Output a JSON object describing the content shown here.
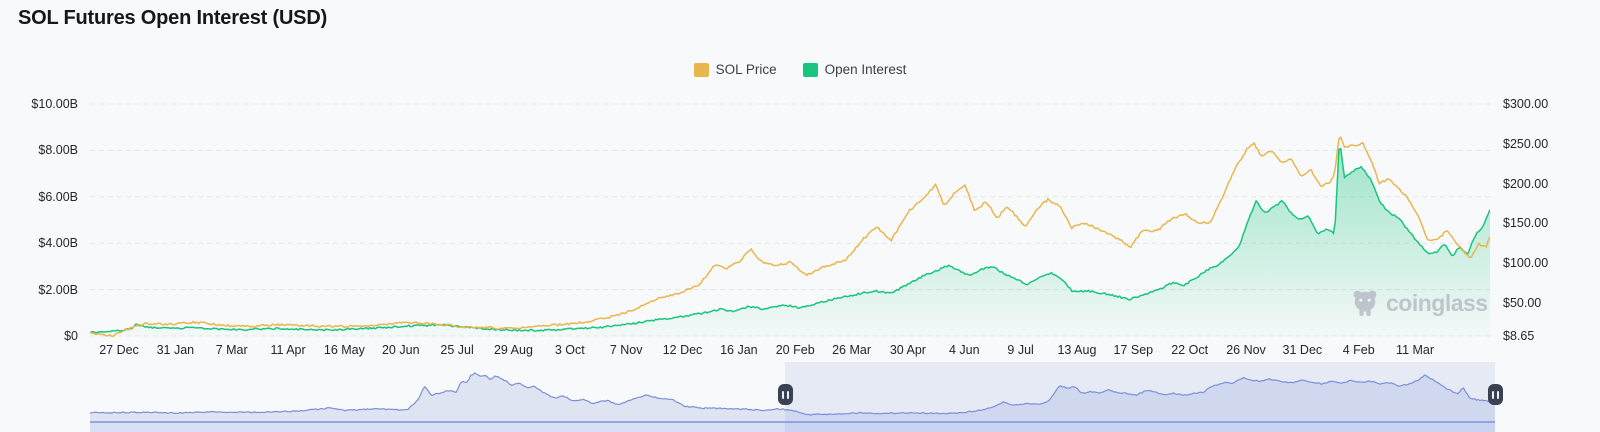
{
  "header": {
    "title": "SOL Futures Open Interest (USD)"
  },
  "legend": [
    {
      "label": "SOL Price",
      "color": "#e9b64d"
    },
    {
      "label": "Open Interest",
      "color": "#18c57e"
    }
  ],
  "watermark": {
    "label": "coinglass"
  },
  "chart_data": {
    "type": "line",
    "title": "SOL Futures Open Interest (USD)",
    "legend_position": "top-center",
    "grid": "horizontal-dashed",
    "left_axis": {
      "title": "Open Interest (USD)",
      "min": 0,
      "max": 10,
      "unit": "billion USD",
      "tick_labels": [
        "$10.00B",
        "$8.00B",
        "$6.00B",
        "$4.00B",
        "$2.00B",
        "$0"
      ]
    },
    "right_axis": {
      "title": "SOL Price (USD)",
      "min": 8.65,
      "max": 300,
      "unit": "USD",
      "tick_values": [
        300,
        250,
        200,
        150,
        100,
        50,
        8.65
      ],
      "tick_labels": [
        "$300.00",
        "$250.00",
        "$200.00",
        "$150.00",
        "$100.00",
        "$50.00",
        "$8.65"
      ]
    },
    "x_axis": {
      "tick_labels": [
        "27 Dec",
        "31 Jan",
        "7 Mar",
        "11 Apr",
        "16 May",
        "20 Jun",
        "25 Jul",
        "29 Aug",
        "3 Oct",
        "7 Nov",
        "12 Dec",
        "16 Jan",
        "20 Feb",
        "26 Mar",
        "30 Apr",
        "4 Jun",
        "9 Jul",
        "13 Aug",
        "17 Sep",
        "22 Oct",
        "26 Nov",
        "31 Dec",
        "4 Feb",
        "11 Mar"
      ]
    },
    "series": [
      {
        "name": "SOL Price",
        "axis": "right",
        "color": "#e9b64d",
        "style": "line",
        "points": [
          [
            0.0,
            13
          ],
          [
            0.006,
            11
          ],
          [
            0.016,
            8.65
          ],
          [
            0.02,
            12
          ],
          [
            0.025,
            16
          ],
          [
            0.039,
            24
          ],
          [
            0.055,
            23
          ],
          [
            0.075,
            26
          ],
          [
            0.095,
            22
          ],
          [
            0.115,
            21
          ],
          [
            0.135,
            23
          ],
          [
            0.155,
            21.5
          ],
          [
            0.175,
            20.5
          ],
          [
            0.195,
            21
          ],
          [
            0.215,
            23.5
          ],
          [
            0.228,
            26
          ],
          [
            0.245,
            24
          ],
          [
            0.265,
            20.5
          ],
          [
            0.285,
            19
          ],
          [
            0.3,
            18
          ],
          [
            0.315,
            20
          ],
          [
            0.33,
            22
          ],
          [
            0.345,
            24
          ],
          [
            0.36,
            28
          ],
          [
            0.375,
            34
          ],
          [
            0.39,
            43
          ],
          [
            0.405,
            56
          ],
          [
            0.42,
            62
          ],
          [
            0.435,
            73
          ],
          [
            0.447,
            99
          ],
          [
            0.455,
            93
          ],
          [
            0.465,
            104
          ],
          [
            0.472,
            118
          ],
          [
            0.48,
            101
          ],
          [
            0.49,
            97
          ],
          [
            0.5,
            101
          ],
          [
            0.512,
            85
          ],
          [
            0.525,
            96
          ],
          [
            0.54,
            104
          ],
          [
            0.552,
            130
          ],
          [
            0.562,
            146
          ],
          [
            0.572,
            128
          ],
          [
            0.585,
            166
          ],
          [
            0.597,
            184
          ],
          [
            0.604,
            199
          ],
          [
            0.61,
            172
          ],
          [
            0.618,
            189
          ],
          [
            0.625,
            198
          ],
          [
            0.632,
            165
          ],
          [
            0.64,
            178
          ],
          [
            0.648,
            156
          ],
          [
            0.655,
            172
          ],
          [
            0.662,
            158
          ],
          [
            0.668,
            146
          ],
          [
            0.676,
            168
          ],
          [
            0.684,
            180
          ],
          [
            0.693,
            172
          ],
          [
            0.701,
            144
          ],
          [
            0.71,
            151
          ],
          [
            0.719,
            144
          ],
          [
            0.728,
            137
          ],
          [
            0.737,
            128
          ],
          [
            0.743,
            120
          ],
          [
            0.752,
            142
          ],
          [
            0.762,
            140
          ],
          [
            0.772,
            155
          ],
          [
            0.782,
            162
          ],
          [
            0.792,
            150
          ],
          [
            0.8,
            151
          ],
          [
            0.808,
            180
          ],
          [
            0.817,
            216
          ],
          [
            0.826,
            242
          ],
          [
            0.831,
            252
          ],
          [
            0.837,
            234
          ],
          [
            0.844,
            242
          ],
          [
            0.851,
            226
          ],
          [
            0.858,
            232
          ],
          [
            0.865,
            209
          ],
          [
            0.872,
            217
          ],
          [
            0.879,
            196
          ],
          [
            0.886,
            202
          ],
          [
            0.889,
            212
          ],
          [
            0.8925,
            262
          ],
          [
            0.896,
            246
          ],
          [
            0.903,
            248
          ],
          [
            0.909,
            251
          ],
          [
            0.915,
            230
          ],
          [
            0.921,
            200
          ],
          [
            0.928,
            206
          ],
          [
            0.935,
            194
          ],
          [
            0.942,
            180
          ],
          [
            0.949,
            158
          ],
          [
            0.956,
            128
          ],
          [
            0.963,
            131
          ],
          [
            0.969,
            141
          ],
          [
            0.975,
            127
          ],
          [
            0.98,
            118
          ],
          [
            0.986,
            106
          ],
          [
            0.992,
            124
          ],
          [
            0.997,
            120
          ],
          [
            1.0,
            133
          ]
        ]
      },
      {
        "name": "Open Interest",
        "axis": "left",
        "color": "#18c57e",
        "style": "area",
        "points": [
          [
            0.0,
            0.15
          ],
          [
            0.01,
            0.18
          ],
          [
            0.022,
            0.24
          ],
          [
            0.03,
            0.3
          ],
          [
            0.033,
            0.52
          ],
          [
            0.038,
            0.4
          ],
          [
            0.05,
            0.33
          ],
          [
            0.07,
            0.35
          ],
          [
            0.09,
            0.3
          ],
          [
            0.11,
            0.28
          ],
          [
            0.13,
            0.32
          ],
          [
            0.15,
            0.28
          ],
          [
            0.17,
            0.26
          ],
          [
            0.19,
            0.3
          ],
          [
            0.21,
            0.36
          ],
          [
            0.23,
            0.44
          ],
          [
            0.25,
            0.48
          ],
          [
            0.27,
            0.38
          ],
          [
            0.29,
            0.28
          ],
          [
            0.31,
            0.24
          ],
          [
            0.33,
            0.26
          ],
          [
            0.35,
            0.32
          ],
          [
            0.365,
            0.38
          ],
          [
            0.38,
            0.48
          ],
          [
            0.395,
            0.6
          ],
          [
            0.41,
            0.74
          ],
          [
            0.425,
            0.85
          ],
          [
            0.437,
            0.98
          ],
          [
            0.45,
            1.15
          ],
          [
            0.46,
            1.06
          ],
          [
            0.47,
            1.26
          ],
          [
            0.482,
            1.16
          ],
          [
            0.495,
            1.33
          ],
          [
            0.508,
            1.22
          ],
          [
            0.522,
            1.45
          ],
          [
            0.535,
            1.65
          ],
          [
            0.548,
            1.8
          ],
          [
            0.56,
            1.95
          ],
          [
            0.572,
            1.83
          ],
          [
            0.585,
            2.25
          ],
          [
            0.597,
            2.65
          ],
          [
            0.606,
            2.85
          ],
          [
            0.613,
            3.05
          ],
          [
            0.62,
            2.82
          ],
          [
            0.628,
            2.62
          ],
          [
            0.637,
            2.88
          ],
          [
            0.645,
            2.98
          ],
          [
            0.653,
            2.68
          ],
          [
            0.661,
            2.46
          ],
          [
            0.67,
            2.22
          ],
          [
            0.678,
            2.52
          ],
          [
            0.686,
            2.72
          ],
          [
            0.694,
            2.48
          ],
          [
            0.702,
            1.9
          ],
          [
            0.712,
            1.95
          ],
          [
            0.722,
            1.85
          ],
          [
            0.732,
            1.74
          ],
          [
            0.742,
            1.58
          ],
          [
            0.753,
            1.76
          ],
          [
            0.764,
            2.02
          ],
          [
            0.774,
            2.32
          ],
          [
            0.781,
            2.16
          ],
          [
            0.79,
            2.52
          ],
          [
            0.799,
            2.88
          ],
          [
            0.807,
            3.12
          ],
          [
            0.814,
            3.42
          ],
          [
            0.821,
            3.88
          ],
          [
            0.827,
            4.95
          ],
          [
            0.833,
            5.8
          ],
          [
            0.839,
            5.28
          ],
          [
            0.846,
            5.6
          ],
          [
            0.852,
            5.82
          ],
          [
            0.858,
            5.3
          ],
          [
            0.864,
            5.02
          ],
          [
            0.87,
            5.2
          ],
          [
            0.877,
            4.42
          ],
          [
            0.884,
            4.62
          ],
          [
            0.889,
            4.4
          ],
          [
            0.8925,
            8.5
          ],
          [
            0.896,
            6.85
          ],
          [
            0.902,
            7.1
          ],
          [
            0.908,
            7.28
          ],
          [
            0.915,
            6.75
          ],
          [
            0.921,
            5.8
          ],
          [
            0.928,
            5.3
          ],
          [
            0.935,
            5.08
          ],
          [
            0.942,
            4.52
          ],
          [
            0.949,
            4.0
          ],
          [
            0.956,
            3.55
          ],
          [
            0.962,
            3.64
          ],
          [
            0.968,
            3.98
          ],
          [
            0.973,
            3.42
          ],
          [
            0.978,
            3.84
          ],
          [
            0.984,
            3.56
          ],
          [
            0.99,
            4.4
          ],
          [
            0.995,
            4.7
          ],
          [
            1.0,
            5.45
          ]
        ]
      }
    ],
    "navigator": {
      "description": "full-history minimap, relative scale 0-100",
      "color": "#7c8fd6",
      "window": [
        0.495,
        1.0
      ],
      "points": [
        [
          0.0,
          17
        ],
        [
          0.03,
          18
        ],
        [
          0.06,
          17
        ],
        [
          0.09,
          19
        ],
        [
          0.12,
          18
        ],
        [
          0.15,
          21
        ],
        [
          0.17,
          27
        ],
        [
          0.182,
          22
        ],
        [
          0.2,
          25
        ],
        [
          0.215,
          24
        ],
        [
          0.226,
          23
        ],
        [
          0.234,
          46
        ],
        [
          0.238,
          73
        ],
        [
          0.243,
          54
        ],
        [
          0.249,
          58
        ],
        [
          0.256,
          64
        ],
        [
          0.261,
          60
        ],
        [
          0.264,
          83
        ],
        [
          0.268,
          79
        ],
        [
          0.271,
          95
        ],
        [
          0.274,
          100
        ],
        [
          0.278,
          93
        ],
        [
          0.281,
          96
        ],
        [
          0.285,
          85
        ],
        [
          0.288,
          95
        ],
        [
          0.292,
          89
        ],
        [
          0.296,
          83
        ],
        [
          0.3,
          75
        ],
        [
          0.305,
          79
        ],
        [
          0.311,
          69
        ],
        [
          0.316,
          73
        ],
        [
          0.321,
          62
        ],
        [
          0.33,
          48
        ],
        [
          0.337,
          52
        ],
        [
          0.344,
          42
        ],
        [
          0.351,
          45
        ],
        [
          0.358,
          37
        ],
        [
          0.368,
          43
        ],
        [
          0.376,
          33
        ],
        [
          0.385,
          44
        ],
        [
          0.396,
          54
        ],
        [
          0.404,
          48
        ],
        [
          0.415,
          44
        ],
        [
          0.423,
          31
        ],
        [
          0.435,
          27
        ],
        [
          0.455,
          26
        ],
        [
          0.47,
          24
        ],
        [
          0.481,
          22
        ],
        [
          0.49,
          25
        ],
        [
          0.5,
          22
        ],
        [
          0.512,
          13
        ],
        [
          0.53,
          15
        ],
        [
          0.548,
          17
        ],
        [
          0.566,
          16
        ],
        [
          0.583,
          17
        ],
        [
          0.6,
          16
        ],
        [
          0.619,
          17
        ],
        [
          0.633,
          22
        ],
        [
          0.643,
          30
        ],
        [
          0.65,
          39
        ],
        [
          0.657,
          33
        ],
        [
          0.667,
          37
        ],
        [
          0.676,
          35
        ],
        [
          0.683,
          43
        ],
        [
          0.69,
          74
        ],
        [
          0.696,
          68
        ],
        [
          0.701,
          71
        ],
        [
          0.706,
          58
        ],
        [
          0.712,
          61
        ],
        [
          0.718,
          58
        ],
        [
          0.725,
          64
        ],
        [
          0.731,
          60
        ],
        [
          0.738,
          57
        ],
        [
          0.745,
          54
        ],
        [
          0.752,
          64
        ],
        [
          0.758,
          60
        ],
        [
          0.764,
          54
        ],
        [
          0.771,
          58
        ],
        [
          0.778,
          54
        ],
        [
          0.785,
          57
        ],
        [
          0.792,
          60
        ],
        [
          0.8,
          74
        ],
        [
          0.807,
          80
        ],
        [
          0.813,
          78
        ],
        [
          0.821,
          91
        ],
        [
          0.827,
          85
        ],
        [
          0.833,
          83
        ],
        [
          0.84,
          87
        ],
        [
          0.848,
          83
        ],
        [
          0.855,
          79
        ],
        [
          0.862,
          85
        ],
        [
          0.87,
          81
        ],
        [
          0.877,
          77
        ],
        [
          0.884,
          83
        ],
        [
          0.89,
          79
        ],
        [
          0.897,
          84
        ],
        [
          0.904,
          80
        ],
        [
          0.911,
          83
        ],
        [
          0.918,
          77
        ],
        [
          0.925,
          80
        ],
        [
          0.932,
          73
        ],
        [
          0.939,
          77
        ],
        [
          0.945,
          85
        ],
        [
          0.95,
          95
        ],
        [
          0.957,
          84
        ],
        [
          0.964,
          70
        ],
        [
          0.968,
          64
        ],
        [
          0.974,
          56
        ],
        [
          0.977,
          70
        ],
        [
          0.982,
          48
        ],
        [
          0.988,
          44
        ],
        [
          0.995,
          41
        ],
        [
          1.0,
          40
        ]
      ]
    }
  }
}
